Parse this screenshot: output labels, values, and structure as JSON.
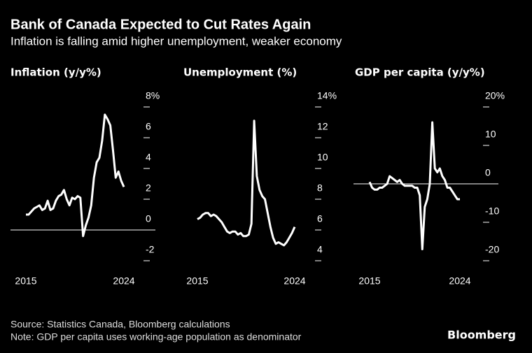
{
  "title": "Bank of Canada Expected to Cut Rates Again",
  "subtitle": "Inflation is falling amid higher unemployment, weaker economy",
  "source": "Source: Statistics Canada, Bloomberg calculations",
  "note": "Note: GDP per capita uses working-age population as denominator",
  "brand": "Bloomberg",
  "chart_data": [
    {
      "type": "line",
      "title": "Inflation (y/y%)",
      "x": [
        2015,
        2015.25,
        2015.5,
        2015.75,
        2016,
        2016.25,
        2016.5,
        2016.75,
        2017,
        2017.25,
        2017.5,
        2017.75,
        2018,
        2018.25,
        2018.5,
        2018.75,
        2019,
        2019.25,
        2019.5,
        2019.75,
        2020,
        2020.25,
        2020.5,
        2020.75,
        2021,
        2021.25,
        2021.5,
        2021.75,
        2022,
        2022.25,
        2022.5,
        2022.75,
        2023,
        2023.25,
        2023.5,
        2023.75,
        2024
      ],
      "series": [
        {
          "color": "#ffffff",
          "values": [
            1.0,
            1.0,
            1.2,
            1.4,
            1.5,
            1.6,
            1.3,
            1.4,
            1.9,
            1.3,
            1.4,
            1.9,
            2.2,
            2.3,
            2.6,
            2.0,
            1.6,
            2.1,
            2.0,
            2.2,
            2.1,
            -0.4,
            0.3,
            0.8,
            1.6,
            3.4,
            4.4,
            4.7,
            5.8,
            7.5,
            7.2,
            6.8,
            5.2,
            3.4,
            3.8,
            3.2,
            2.8
          ]
        }
      ],
      "xlim": [
        2015,
        2024
      ],
      "xticks": [
        2015,
        2024
      ],
      "ylim": [
        -2.5,
        8.5
      ],
      "yticks": [
        {
          "value": 8,
          "label": "8%"
        },
        6,
        4,
        2,
        0,
        -2
      ]
    },
    {
      "type": "line",
      "title": "Unemployment (%)",
      "x": [
        2015,
        2015.25,
        2015.5,
        2015.75,
        2016,
        2016.25,
        2016.5,
        2016.75,
        2017,
        2017.25,
        2017.5,
        2017.75,
        2018,
        2018.25,
        2018.5,
        2018.75,
        2019,
        2019.25,
        2019.5,
        2019.75,
        2020,
        2020.25,
        2020.5,
        2020.75,
        2021,
        2021.25,
        2021.5,
        2021.75,
        2022,
        2022.25,
        2022.5,
        2022.75,
        2023,
        2023.25,
        2023.5,
        2023.75,
        2024
      ],
      "series": [
        {
          "color": "#ffffff",
          "values": [
            6.7,
            6.8,
            7.0,
            7.1,
            7.1,
            6.9,
            7.0,
            6.9,
            6.7,
            6.5,
            6.2,
            5.9,
            5.8,
            5.9,
            5.9,
            5.7,
            5.8,
            5.6,
            5.6,
            5.7,
            6.4,
            13.1,
            9.5,
            8.6,
            8.2,
            8.0,
            7.1,
            6.2,
            5.5,
            5.1,
            5.2,
            5.1,
            5.0,
            5.2,
            5.5,
            5.8,
            6.2
          ]
        }
      ],
      "xlim": [
        2015,
        2024
      ],
      "xticks": [
        2015,
        2024
      ],
      "ylim": [
        3.5,
        14.5
      ],
      "yticks": [
        {
          "value": 14,
          "label": "14%"
        },
        12,
        10,
        8,
        6,
        4
      ]
    },
    {
      "type": "line",
      "title": "GDP per capita (y/y%)",
      "x": [
        2015,
        2015.25,
        2015.5,
        2015.75,
        2016,
        2016.25,
        2016.5,
        2016.75,
        2017,
        2017.25,
        2017.5,
        2017.75,
        2018,
        2018.25,
        2018.5,
        2018.75,
        2019,
        2019.25,
        2019.5,
        2019.75,
        2020,
        2020.25,
        2020.5,
        2020.75,
        2021,
        2021.25,
        2021.5,
        2021.75,
        2022,
        2022.25,
        2022.5,
        2022.75,
        2023,
        2023.25,
        2023.5,
        2023.75,
        2024
      ],
      "series": [
        {
          "color": "#ffffff",
          "values": [
            0.5,
            -1,
            -1.5,
            -1.5,
            -1,
            -1,
            -0.5,
            0,
            2,
            1.5,
            1,
            0.5,
            1,
            0,
            -0.5,
            -0.5,
            -0.5,
            -0.5,
            -1,
            -1,
            -3,
            -17,
            -6,
            -4,
            0,
            16,
            4,
            3,
            4,
            2,
            1,
            -1,
            -1,
            -2,
            -3,
            -4,
            -4
          ]
        }
      ],
      "xlim": [
        2015,
        2024
      ],
      "xticks": [
        2015,
        2024
      ],
      "ylim": [
        -22,
        22
      ],
      "yticks": [
        {
          "value": 20,
          "label": "20%"
        },
        10,
        0,
        -10,
        -20
      ]
    }
  ]
}
